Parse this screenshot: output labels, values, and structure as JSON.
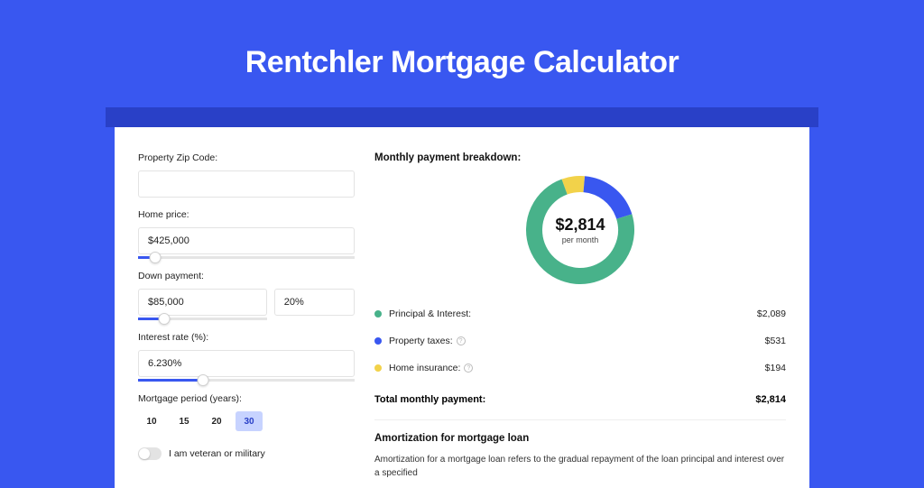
{
  "page": {
    "title": "Rentchler Mortgage Calculator",
    "background_color": "#3957f0",
    "header_strip_color": "#2940c7",
    "card_background": "#ffffff"
  },
  "form": {
    "zip": {
      "label": "Property Zip Code:",
      "value": ""
    },
    "home_price": {
      "label": "Home price:",
      "value": "$425,000",
      "slider_pct": 8
    },
    "down_payment": {
      "label": "Down payment:",
      "value": "$85,000",
      "pct_value": "20%",
      "slider_pct": 20
    },
    "interest_rate": {
      "label": "Interest rate (%):",
      "value": "6.230%",
      "slider_pct": 30
    },
    "period": {
      "label": "Mortgage period (years):",
      "options": [
        "10",
        "15",
        "20",
        "30"
      ],
      "selected": "30"
    },
    "veteran": {
      "label": "I am veteran or military",
      "on": false
    }
  },
  "breakdown": {
    "heading": "Monthly payment breakdown:",
    "center_amount": "$2,814",
    "center_sub": "per month",
    "donut": {
      "size": 120,
      "thickness": 18,
      "slices": [
        {
          "key": "principal_interest",
          "color": "#48b28a",
          "pct": 74.2
        },
        {
          "key": "property_taxes",
          "color": "#3957f0",
          "pct": 18.9
        },
        {
          "key": "home_insurance",
          "color": "#f2d24a",
          "pct": 6.9
        }
      ]
    },
    "items": [
      {
        "label": "Principal & Interest:",
        "value": "$2,089",
        "color": "#48b28a",
        "info": false
      },
      {
        "label": "Property taxes:",
        "value": "$531",
        "color": "#3957f0",
        "info": true
      },
      {
        "label": "Home insurance:",
        "value": "$194",
        "color": "#f2d24a",
        "info": true
      }
    ],
    "total": {
      "label": "Total monthly payment:",
      "value": "$2,814"
    }
  },
  "amortization": {
    "heading": "Amortization for mortgage loan",
    "text": "Amortization for a mortgage loan refers to the gradual repayment of the loan principal and interest over a specified"
  }
}
